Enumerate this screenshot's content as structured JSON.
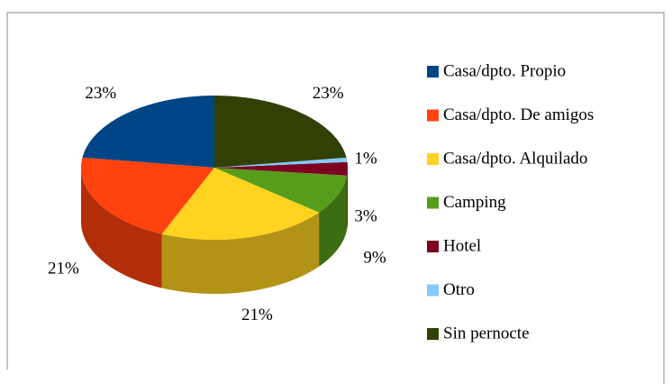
{
  "chart_data": {
    "type": "pie3d",
    "categories": [
      "Casa/dpto. Propio",
      "Casa/dpto. De amigos",
      "Casa/dpto. Alquilado",
      "Camping",
      "Hotel",
      "Otro",
      "Sin pernocte"
    ],
    "values": [
      23,
      21,
      21,
      9,
      3,
      1,
      23
    ],
    "value_labels": [
      "23%",
      "21%",
      "21%",
      "9%",
      "3%",
      "1%",
      "23%"
    ],
    "colors": [
      "#004586",
      "#ff420e",
      "#ffd320",
      "#579d1c",
      "#7e0021",
      "#83caff",
      "#314004"
    ],
    "legend": "right"
  }
}
